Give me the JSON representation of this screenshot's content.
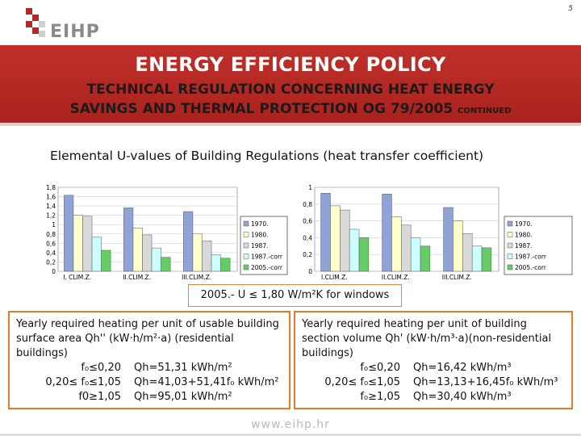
{
  "page": {
    "number": "5"
  },
  "logo": {
    "text": "EIHP"
  },
  "banner": {
    "title": "ENERGY EFFICIENCY POLICY",
    "subtitle_line1": "TECHNICAL REGULATION CONCERNING HEAT ENERGY",
    "subtitle_line2": "SAVINGS AND THERMAL PROTECTION OG 79/2005",
    "continued": "CONTINUED"
  },
  "subtitle": "Elemental U-values of Building Regulations (heat transfer coefficient)",
  "colors": {
    "accent": "#b12a25",
    "box_border": "#e07a2c"
  },
  "chart_data": [
    {
      "type": "bar",
      "categories": [
        "I. CLIM.Z.",
        "II.CLIM.Z.",
        "III.CLIM.Z."
      ],
      "ylim": [
        0,
        1.8
      ],
      "yticks": [
        "0",
        "0,2",
        "0,4",
        "0,6",
        "0,8",
        "1",
        "1,2",
        "1,4",
        "1,6",
        "1,8"
      ],
      "series": [
        {
          "name": "1970.",
          "color": "#8fa3d6",
          "values": [
            1.63,
            1.36,
            1.28
          ]
        },
        {
          "name": "1980.",
          "color": "#ffffcc",
          "values": [
            1.2,
            0.93,
            0.8
          ]
        },
        {
          "name": "1987.",
          "color": "#d9d9d9",
          "values": [
            1.18,
            0.78,
            0.65
          ]
        },
        {
          "name": "1987.-corr",
          "color": "#ccffff",
          "values": [
            0.73,
            0.5,
            0.35
          ]
        },
        {
          "name": "2005.-corr",
          "color": "#66cc66",
          "values": [
            0.45,
            0.3,
            0.28
          ]
        }
      ],
      "legend": "right"
    },
    {
      "type": "bar",
      "categories": [
        "I.CLIM.Z.",
        "II.CLIM.Z.",
        "III.CLIM.Z."
      ],
      "ylim": [
        0,
        1
      ],
      "yticks": [
        "0",
        "0,2",
        "0,4",
        "0,6",
        "0,8",
        "1"
      ],
      "series": [
        {
          "name": "1970.",
          "color": "#8fa3d6",
          "values": [
            0.93,
            0.92,
            0.76
          ]
        },
        {
          "name": "1980.",
          "color": "#ffffcc",
          "values": [
            0.78,
            0.65,
            0.6
          ]
        },
        {
          "name": "1987.",
          "color": "#d9d9d9",
          "values": [
            0.73,
            0.55,
            0.45
          ]
        },
        {
          "name": "1987.-corr",
          "color": "#ccffff",
          "values": [
            0.5,
            0.4,
            0.3
          ]
        },
        {
          "name": "2005.-corr",
          "color": "#66cc66",
          "values": [
            0.4,
            0.3,
            0.28
          ]
        }
      ],
      "legend": "right"
    }
  ],
  "window_note": "2005.- U ≤ 1,80 W/m²K for windows",
  "residential": {
    "desc": "Yearly required heating per unit of usable building surface area Qh'' (kW·h/m²·a) (residential buildings)",
    "rows": [
      {
        "cond": "f₀≤0,20",
        "res": "Qh=51,31 kWh/m²"
      },
      {
        "cond": "0,20≤ f₀≤1,05",
        "res": "Qh=41,03+51,41f₀ kWh/m²"
      },
      {
        "cond": "f0≥1,05",
        "res": "Qh=95,01 kWh/m²"
      }
    ]
  },
  "non_residential": {
    "desc": "Yearly required heating per unit of building section volume Qh' (kW·h/m³·a)(non-residential buildings)",
    "rows": [
      {
        "cond": "f₀≤0,20",
        "res": "Qh=16,42 kWh/m³"
      },
      {
        "cond": "0,20≤ f₀≤1,05",
        "res": "Qh=13,13+16,45f₀ kWh/m³"
      },
      {
        "cond": "f₀≥1,05",
        "res": "Qh=30,40 kWh/m³"
      }
    ]
  },
  "footer": {
    "url": "www.eihp.hr"
  }
}
